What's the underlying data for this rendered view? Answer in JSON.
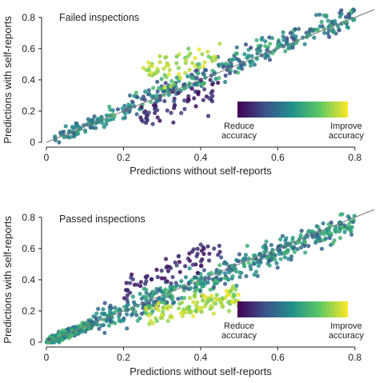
{
  "chart_data": [
    {
      "type": "scatter",
      "annotation": "Failed inspections",
      "xlabel": "Predictions without self-reports",
      "ylabel": "Predictions with self-reports",
      "xlim": [
        0,
        0.85
      ],
      "ylim": [
        0,
        0.85
      ],
      "xticks": [
        "0",
        "0.2",
        "0.4",
        "0.6",
        "0.8"
      ],
      "yticks": [
        "0",
        "0.2",
        "0.4",
        "0.6",
        "0.8"
      ],
      "reference_line": "y = x",
      "grid": false,
      "colorbar": {
        "low_label": [
          "Reduce",
          "accuracy"
        ],
        "high_label": [
          "Improve",
          "accuracy"
        ],
        "colormap": "viridis"
      },
      "clusters": [
        {
          "x_range": [
            0.02,
            0.16
          ],
          "slope": 1.0,
          "offset": 0.0,
          "spread": 0.025,
          "n": 70,
          "color_range": [
            0.3,
            0.6
          ]
        },
        {
          "x_range": [
            0.16,
            0.8
          ],
          "slope": 1.0,
          "offset": 0.02,
          "spread": 0.04,
          "n": 320,
          "color_range": [
            0.2,
            0.7
          ]
        },
        {
          "x_range": [
            0.25,
            0.45
          ],
          "slope": 0.6,
          "offset": 0.3,
          "spread": 0.045,
          "n": 60,
          "color_range": [
            0.75,
            0.98
          ]
        },
        {
          "x_range": [
            0.24,
            0.45
          ],
          "slope": 1.0,
          "offset": -0.1,
          "spread": 0.05,
          "n": 60,
          "color_range": [
            0.02,
            0.22
          ]
        }
      ]
    },
    {
      "type": "scatter",
      "annotation": "Passed inspections",
      "xlabel": "Predictions without self-reports",
      "ylabel": "Predictions with self-reports",
      "xlim": [
        0,
        0.85
      ],
      "ylim": [
        0,
        0.85
      ],
      "xticks": [
        "0",
        "0.2",
        "0.4",
        "0.6",
        "0.8"
      ],
      "yticks": [
        "0",
        "0.2",
        "0.4",
        "0.6",
        "0.8"
      ],
      "reference_line": "y = x",
      "grid": false,
      "colorbar": {
        "low_label": [
          "Reduce",
          "accuracy"
        ],
        "high_label": [
          "Improve",
          "accuracy"
        ],
        "colormap": "viridis"
      },
      "clusters": [
        {
          "x_range": [
            0.0,
            0.12
          ],
          "slope": 1.0,
          "offset": 0.0,
          "spread": 0.015,
          "n": 300,
          "color_range": [
            0.3,
            0.75
          ]
        },
        {
          "x_range": [
            0.12,
            0.8
          ],
          "slope": 0.95,
          "offset": 0.01,
          "spread": 0.04,
          "n": 480,
          "color_range": [
            0.25,
            0.7
          ]
        },
        {
          "x_range": [
            0.25,
            0.5
          ],
          "slope": 0.55,
          "offset": 0.02,
          "spread": 0.04,
          "n": 120,
          "color_range": [
            0.75,
            0.98
          ]
        },
        {
          "x_range": [
            0.2,
            0.45
          ],
          "slope": 1.15,
          "offset": 0.1,
          "spread": 0.05,
          "n": 70,
          "color_range": [
            0.02,
            0.22
          ]
        }
      ]
    }
  ]
}
